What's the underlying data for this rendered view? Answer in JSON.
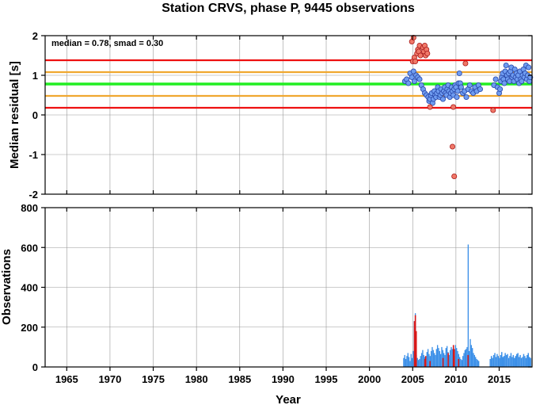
{
  "chart_data": [
    {
      "type": "scatter",
      "panel": "residuals",
      "title": "Station CRVS, phase P, 9445 observations",
      "xlabel": "",
      "ylabel": "Median residual [s]",
      "xlim": [
        1962.5,
        2018.8
      ],
      "ylim": [
        -2,
        2
      ],
      "yticks": [
        -2,
        -1,
        0,
        1,
        2
      ],
      "grid": true,
      "annotation": "median = 0.78, smad = 0.30",
      "reference_lines": [
        {
          "y": 1.38,
          "color": "#ee1111"
        },
        {
          "y": 1.08,
          "color": "#f0a830"
        },
        {
          "y": 0.78,
          "color": "#22ee22"
        },
        {
          "y": 0.48,
          "color": "#f0a830"
        },
        {
          "y": 0.18,
          "color": "#ee1111"
        }
      ],
      "series": [
        {
          "style": "inlier",
          "fill": "#6f9cf0",
          "stroke": "#2746a8",
          "points": [
            [
              2004.1,
              0.85
            ],
            [
              2004.3,
              0.9
            ],
            [
              2004.5,
              0.8
            ],
            [
              2004.7,
              1.05
            ],
            [
              2004.9,
              0.95
            ],
            [
              2005.1,
              1.1
            ],
            [
              2005.2,
              0.85
            ],
            [
              2005.4,
              1.0
            ],
            [
              2005.6,
              0.95
            ],
            [
              2005.8,
              0.9
            ],
            [
              2006.0,
              0.75
            ],
            [
              2006.2,
              0.65
            ],
            [
              2006.4,
              0.55
            ],
            [
              2006.6,
              0.5
            ],
            [
              2006.8,
              0.45
            ],
            [
              2006.9,
              0.35
            ],
            [
              2007.0,
              0.4
            ],
            [
              2007.1,
              0.5
            ],
            [
              2007.2,
              0.55
            ],
            [
              2007.3,
              0.3
            ],
            [
              2007.4,
              0.4
            ],
            [
              2007.5,
              0.6
            ],
            [
              2007.6,
              0.5
            ],
            [
              2007.7,
              0.45
            ],
            [
              2007.8,
              0.55
            ],
            [
              2007.9,
              0.7
            ],
            [
              2008.0,
              0.6
            ],
            [
              2008.1,
              0.45
            ],
            [
              2008.2,
              0.5
            ],
            [
              2008.3,
              0.65
            ],
            [
              2008.4,
              0.55
            ],
            [
              2008.5,
              0.4
            ],
            [
              2008.6,
              0.6
            ],
            [
              2008.7,
              0.7
            ],
            [
              2008.8,
              0.55
            ],
            [
              2008.9,
              0.5
            ],
            [
              2009.0,
              0.65
            ],
            [
              2009.1,
              0.75
            ],
            [
              2009.2,
              0.6
            ],
            [
              2009.3,
              0.45
            ],
            [
              2009.4,
              0.55
            ],
            [
              2009.5,
              0.7
            ],
            [
              2009.6,
              0.6
            ],
            [
              2009.7,
              0.5
            ],
            [
              2009.8,
              0.65
            ],
            [
              2009.9,
              0.75
            ],
            [
              2010.0,
              0.7
            ],
            [
              2010.1,
              0.45
            ],
            [
              2010.2,
              0.6
            ],
            [
              2010.3,
              0.8
            ],
            [
              2010.4,
              1.05
            ],
            [
              2010.5,
              0.8
            ],
            [
              2010.6,
              0.7
            ],
            [
              2010.8,
              0.55
            ],
            [
              2011.0,
              0.6
            ],
            [
              2011.2,
              0.45
            ],
            [
              2011.4,
              0.65
            ],
            [
              2011.6,
              0.75
            ],
            [
              2011.8,
              0.6
            ],
            [
              2012.0,
              0.55
            ],
            [
              2012.2,
              0.7
            ],
            [
              2012.4,
              0.6
            ],
            [
              2012.6,
              0.75
            ],
            [
              2012.8,
              0.65
            ],
            [
              2014.4,
              0.75
            ],
            [
              2014.6,
              0.9
            ],
            [
              2014.8,
              0.7
            ],
            [
              2015.0,
              0.55
            ],
            [
              2015.1,
              0.65
            ],
            [
              2015.2,
              0.85
            ],
            [
              2015.3,
              0.95
            ],
            [
              2015.4,
              1.05
            ],
            [
              2015.5,
              0.9
            ],
            [
              2015.6,
              0.8
            ],
            [
              2015.7,
              1.1
            ],
            [
              2015.8,
              1.25
            ],
            [
              2015.9,
              1.0
            ],
            [
              2016.0,
              0.9
            ],
            [
              2016.1,
              1.05
            ],
            [
              2016.2,
              0.85
            ],
            [
              2016.3,
              1.1
            ],
            [
              2016.4,
              1.2
            ],
            [
              2016.5,
              0.95
            ],
            [
              2016.6,
              1.0
            ],
            [
              2016.7,
              0.85
            ],
            [
              2016.8,
              1.15
            ],
            [
              2016.9,
              0.95
            ],
            [
              2017.0,
              1.05
            ],
            [
              2017.1,
              0.9
            ],
            [
              2017.2,
              1.0
            ],
            [
              2017.3,
              0.8
            ],
            [
              2017.4,
              1.1
            ],
            [
              2017.5,
              0.9
            ],
            [
              2017.6,
              0.85
            ],
            [
              2017.7,
              1.0
            ],
            [
              2017.8,
              1.15
            ],
            [
              2017.9,
              0.95
            ],
            [
              2018.0,
              1.05
            ],
            [
              2018.1,
              1.25
            ],
            [
              2018.2,
              0.9
            ],
            [
              2018.3,
              1.0
            ],
            [
              2018.4,
              1.2
            ],
            [
              2018.5,
              0.85
            ],
            [
              2018.6,
              0.95
            ]
          ]
        },
        {
          "style": "outlier",
          "fill": "#f07868",
          "stroke": "#a81a1a",
          "points": [
            [
              2004.9,
              1.85
            ],
            [
              2005.0,
              1.35
            ],
            [
              2005.1,
              1.95
            ],
            [
              2005.2,
              1.45
            ],
            [
              2005.3,
              1.35
            ],
            [
              2005.5,
              1.55
            ],
            [
              2005.6,
              1.65
            ],
            [
              2005.7,
              1.6
            ],
            [
              2005.8,
              1.75
            ],
            [
              2005.9,
              1.5
            ],
            [
              2006.2,
              1.7
            ],
            [
              2006.3,
              1.6
            ],
            [
              2006.4,
              1.75
            ],
            [
              2006.5,
              1.5
            ],
            [
              2006.6,
              1.65
            ],
            [
              2006.7,
              1.55
            ],
            [
              2007.0,
              0.2
            ],
            [
              2009.6,
              -0.8
            ],
            [
              2009.7,
              0.2
            ],
            [
              2009.8,
              -1.55
            ],
            [
              2011.1,
              1.3
            ],
            [
              2014.3,
              0.12
            ]
          ]
        }
      ]
    },
    {
      "type": "bar",
      "panel": "observations",
      "xlabel": "Year",
      "ylabel": "Observations",
      "xlim": [
        1962.5,
        2018.8
      ],
      "ylim": [
        0,
        800
      ],
      "yticks": [
        0,
        200,
        400,
        600,
        800
      ],
      "xticks": [
        1965,
        1970,
        1975,
        1980,
        1985,
        1990,
        1995,
        2000,
        2005,
        2010,
        2015
      ],
      "xticklabels": [
        "1965",
        "1970",
        "1975",
        "1980",
        "1985",
        "1990",
        "1995",
        "2000",
        "2005",
        "2010",
        "2015"
      ],
      "grid": true,
      "series": [
        {
          "color": "#3a8fe8",
          "segments": [
            {
              "from": 2003.9,
              "to": 2012.7,
              "values": [
                45,
                60,
                40,
                55,
                70,
                50,
                30,
                65,
                45,
                80,
                230,
                270,
                60,
                45,
                35,
                40,
                55,
                70,
                85,
                60,
                50,
                40,
                75,
                90,
                65,
                55,
                80,
                100,
                85,
                70,
                60,
                90,
                110,
                95,
                80,
                65,
                100,
                85,
                70,
                60,
                95,
                105,
                75,
                60,
                85,
                100,
                90,
                70,
                55,
                110,
                95,
                80,
                65,
                50,
                40,
                35,
                55,
                70,
                85,
                90,
                100,
                615,
                80,
                140,
                110,
                95,
                70,
                60,
                50,
                40,
                35,
                30
              ]
            },
            {
              "from": 2013.9,
              "to": 2018.7,
              "values": [
                40,
                55,
                45,
                60,
                70,
                50,
                65,
                55,
                45,
                60,
                75,
                50,
                55,
                70,
                60,
                65,
                45,
                55,
                70,
                50,
                60,
                45,
                55,
                65,
                70,
                50,
                60,
                45,
                50,
                65,
                55,
                45,
                60,
                70,
                50,
                45
              ]
            }
          ]
        },
        {
          "color": "#d81818",
          "bars": [
            [
              2005.2,
              230
            ],
            [
              2005.3,
              260
            ],
            [
              2005.4,
              180
            ],
            [
              2006.4,
              40
            ],
            [
              2006.5,
              55
            ],
            [
              2007.0,
              30
            ],
            [
              2008.5,
              45
            ],
            [
              2009.1,
              70
            ],
            [
              2009.7,
              110
            ],
            [
              2009.8,
              90
            ],
            [
              2010.3,
              40
            ],
            [
              2011.4,
              60
            ]
          ]
        }
      ]
    }
  ]
}
